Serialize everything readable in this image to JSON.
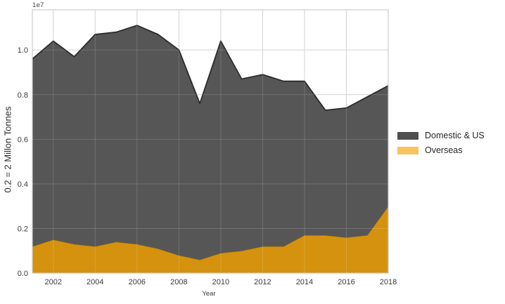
{
  "figure": {
    "offset_text": "1e7",
    "xlabel": "Year",
    "ylabel": "0.2 = 2 Millon Tonnes"
  },
  "legend": {
    "position": "right-outside",
    "items": [
      {
        "label": "Domestic & US",
        "swatch_color": "#4f4f4f"
      },
      {
        "label": "Overseas",
        "swatch_color": "#f9c45f"
      }
    ]
  },
  "colors": {
    "grid": "#cccccc",
    "grid_overlay_on_fill": "rgba(255,255,255,0.16)",
    "plot_border": "#cccccc",
    "tick_text": "#3b3b3b",
    "background": "#ffffff"
  },
  "chart_data": {
    "type": "area",
    "stacked": true,
    "title": "",
    "xlabel": "Year",
    "ylabel": "0.2 = 2 Millon Tonnes",
    "y_unit_multiplier": "1e7",
    "grid": true,
    "legend_position": "right-outside",
    "x": [
      2001,
      2002,
      2003,
      2004,
      2005,
      2006,
      2007,
      2008,
      2009,
      2010,
      2011,
      2012,
      2013,
      2014,
      2015,
      2016,
      2017,
      2018
    ],
    "series": [
      {
        "name": "Overseas",
        "fill_color": "#d4920e",
        "edge_color": "#8f680c",
        "values": [
          0.12,
          0.15,
          0.13,
          0.12,
          0.14,
          0.13,
          0.11,
          0.08,
          0.06,
          0.09,
          0.1,
          0.12,
          0.12,
          0.17,
          0.17,
          0.16,
          0.17,
          0.3
        ]
      },
      {
        "name": "Domestic & US",
        "fill_color": "#565656",
        "edge_color": "#2b2b2b",
        "values": [
          0.84,
          0.89,
          0.84,
          0.95,
          0.94,
          0.98,
          0.96,
          0.92,
          0.7,
          0.95,
          0.77,
          0.77,
          0.74,
          0.69,
          0.56,
          0.58,
          0.62,
          0.54
        ]
      }
    ],
    "stacked_totals": [
      0.96,
      1.04,
      0.97,
      1.07,
      1.08,
      1.11,
      1.07,
      1.0,
      0.76,
      1.04,
      0.87,
      0.89,
      0.86,
      0.86,
      0.73,
      0.74,
      0.79,
      0.84
    ],
    "xticks": [
      "2002",
      "2004",
      "2006",
      "2008",
      "2010",
      "2012",
      "2014",
      "2016",
      "2018"
    ],
    "yticks": [
      "0.0",
      "0.2",
      "0.4",
      "0.6",
      "0.8",
      "1.0"
    ],
    "xlim": [
      2001,
      2018
    ],
    "ylim": [
      0,
      1.18
    ]
  }
}
